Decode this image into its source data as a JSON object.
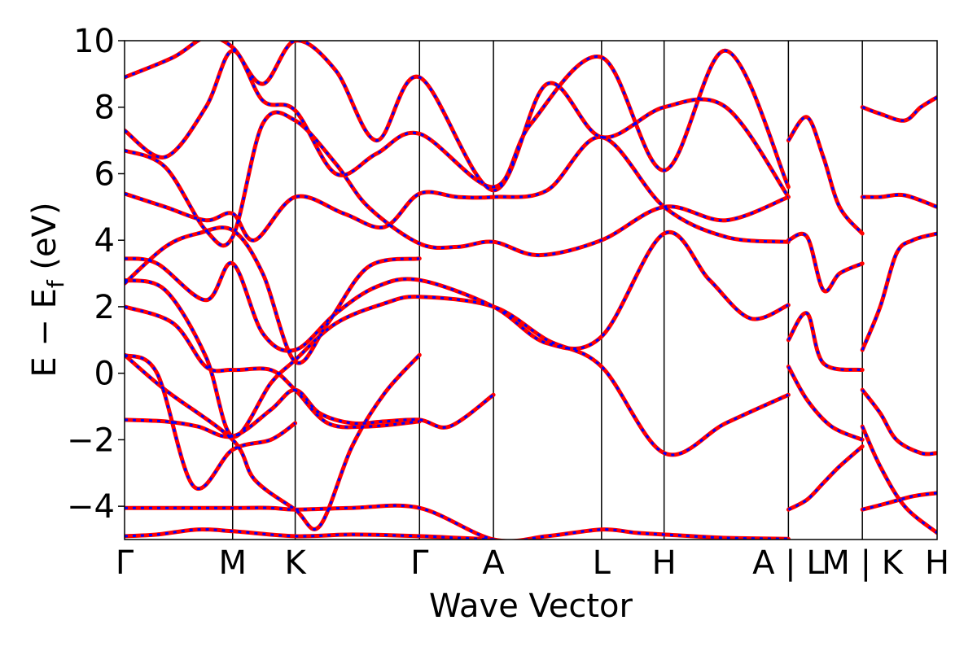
{
  "chart_data": {
    "type": "line",
    "xlabel": "Wave Vector",
    "ylabel_main": "E − E",
    "ylabel_sub": "f",
    "ylabel_unit": " (eV)",
    "ylim": [
      -5,
      10
    ],
    "yticks": [
      -4,
      -2,
      0,
      2,
      4,
      6,
      8,
      10
    ],
    "ytick_labels": [
      "−4",
      "−2",
      "0",
      "2",
      "4",
      "6",
      "8",
      "10"
    ],
    "xlim": [
      0,
      10
    ],
    "high_symmetry_points": [
      {
        "label": "Γ",
        "k": 0.0
      },
      {
        "label": "M",
        "k": 1.33
      },
      {
        "label": "K",
        "k": 2.1
      },
      {
        "label": "Γ",
        "k": 3.63
      },
      {
        "label": "A",
        "k": 4.54
      },
      {
        "label": "L",
        "k": 5.87
      },
      {
        "label": "H",
        "k": 6.64
      },
      {
        "label": "A | L",
        "k": 8.17
      },
      {
        "label": "M | K",
        "k": 9.08
      },
      {
        "label": "H",
        "k": 10.0
      }
    ],
    "series_styles": [
      {
        "color": "#ff0000",
        "dash": "solid"
      },
      {
        "color": "#0000ff",
        "dash": "dashed"
      }
    ],
    "bands": [
      {
        "k": [
          0,
          0.6,
          1.33,
          1.8,
          2.1,
          2.8,
          3.63,
          4.54,
          5.2,
          5.87,
          6.3,
          6.64,
          7.4,
          8.17
        ],
        "e": [
          -4.05,
          -4.05,
          -4.05,
          -4.05,
          -4.1,
          -4.05,
          -4.05,
          -5.0,
          -4.9,
          -4.7,
          -4.8,
          -4.85,
          -4.95,
          -4.98
        ]
      },
      {
        "k": [
          0,
          0.4,
          0.9,
          1.33,
          2.1,
          2.8,
          3.63,
          4.1,
          4.54
        ],
        "e": [
          -4.9,
          -4.85,
          -4.7,
          -4.75,
          -4.9,
          -4.85,
          -4.9,
          -4.95,
          -5.0
        ]
      },
      {
        "k": [
          0,
          0.5,
          0.9,
          1.33,
          1.8,
          2.1,
          2.4,
          2.8,
          3.2,
          3.63,
          4.0,
          4.54
        ],
        "e": [
          -1.4,
          -1.45,
          -1.6,
          -1.9,
          -1.1,
          -0.5,
          -1.2,
          -1.5,
          -1.45,
          -1.4,
          -1.6,
          -0.65
        ]
      },
      {
        "k": [
          0,
          0.4,
          0.85,
          1.33,
          1.8,
          2.1
        ],
        "e": [
          0.55,
          0.0,
          -3.4,
          -2.3,
          -2.0,
          -1.5
        ]
      },
      {
        "k": [
          0,
          0.5,
          1.33,
          1.6,
          2.1,
          2.4,
          2.8,
          3.2,
          3.63
        ],
        "e": [
          0.55,
          -0.5,
          -2.0,
          -3.2,
          -4.1,
          -4.6,
          -2.2,
          -0.6,
          0.55
        ]
      },
      {
        "k": [
          0,
          0.6,
          1.0,
          1.33,
          1.8,
          2.1,
          2.5,
          3.0,
          3.63
        ],
        "e": [
          2.0,
          1.5,
          0.2,
          0.1,
          0.1,
          -0.5,
          -1.5,
          -1.6,
          -1.45
        ]
      },
      {
        "k": [
          0,
          0.5,
          1.0,
          1.33,
          1.8,
          2.1,
          2.6,
          3.2,
          3.63,
          4.54,
          5.2,
          5.87,
          6.64,
          7.4,
          8.17
        ],
        "e": [
          2.8,
          2.5,
          0.5,
          -1.9,
          -0.3,
          0.4,
          1.5,
          2.1,
          2.3,
          2.0,
          1.0,
          0.2,
          -2.4,
          -1.5,
          -0.65
        ]
      },
      {
        "k": [
          0,
          0.4,
          1.0,
          1.33,
          1.7,
          2.1,
          2.6,
          3.1,
          3.63,
          4.54,
          5.2,
          5.87,
          6.64,
          7.2,
          7.7,
          8.17
        ],
        "e": [
          3.45,
          3.3,
          2.2,
          3.3,
          1.2,
          0.7,
          1.8,
          2.6,
          2.8,
          2.0,
          0.9,
          1.1,
          4.2,
          2.8,
          1.65,
          2.05
        ]
      },
      {
        "k": [
          0,
          0.5,
          0.9,
          1.33,
          1.7,
          2.1,
          2.5,
          3.0,
          3.63
        ],
        "e": [
          2.7,
          3.8,
          4.2,
          4.3,
          3.0,
          0.35,
          1.5,
          3.2,
          3.45
        ]
      },
      {
        "k": [
          0,
          0.5,
          1.0,
          1.33,
          1.6,
          2.1,
          2.7,
          3.2,
          3.63,
          4.1,
          4.54,
          5.2,
          5.87,
          6.64,
          7.4,
          8.17
        ],
        "e": [
          5.4,
          5.0,
          4.6,
          4.8,
          4.0,
          5.3,
          4.8,
          4.4,
          5.4,
          5.3,
          5.3,
          5.5,
          7.1,
          5.0,
          4.1,
          3.95
        ]
      },
      {
        "k": [
          0,
          0.5,
          1.0,
          1.33,
          1.7,
          2.1,
          2.6,
          3.0,
          3.63,
          4.1,
          4.54,
          5.1,
          5.87,
          6.64,
          7.4,
          8.17
        ],
        "e": [
          6.7,
          6.2,
          4.3,
          4.1,
          7.5,
          7.6,
          6.3,
          5.0,
          3.9,
          3.8,
          3.95,
          3.55,
          4.0,
          5.0,
          4.6,
          5.3
        ]
      },
      {
        "k": [
          0,
          0.5,
          1.0,
          1.33,
          1.7,
          2.1,
          2.6,
          3.1,
          3.63,
          4.54,
          5.0,
          5.87,
          6.64,
          7.4,
          8.17
        ],
        "e": [
          7.3,
          6.5,
          8.0,
          9.7,
          8.2,
          7.9,
          6.0,
          6.6,
          7.2,
          5.6,
          7.5,
          9.5,
          6.1,
          9.7,
          5.6
        ]
      },
      {
        "k": [
          0,
          0.6,
          1.0,
          1.33,
          1.7,
          2.1,
          2.6,
          3.1,
          3.63,
          4.54,
          5.2,
          5.87,
          6.64,
          7.4,
          8.17
        ],
        "e": [
          8.9,
          9.5,
          10.1,
          9.8,
          8.7,
          10.0,
          9.1,
          7.0,
          8.9,
          5.5,
          8.7,
          7.1,
          8.0,
          8.0,
          5.3
        ]
      },
      {
        "k": [
          8.17,
          8.4,
          8.6,
          8.8,
          9.08
        ],
        "e": [
          7.0,
          7.7,
          6.5,
          5.0,
          4.2
        ]
      },
      {
        "k": [
          8.17,
          8.4,
          8.6,
          8.8,
          9.08
        ],
        "e": [
          4.0,
          4.1,
          2.5,
          3.0,
          3.3
        ]
      },
      {
        "k": [
          8.17,
          8.4,
          8.6,
          9.08
        ],
        "e": [
          1.0,
          1.8,
          0.3,
          0.1
        ]
      },
      {
        "k": [
          8.17,
          8.4,
          8.7,
          9.08
        ],
        "e": [
          0.2,
          -0.8,
          -1.6,
          -2.0
        ]
      },
      {
        "k": [
          8.17,
          8.4,
          8.6,
          8.8,
          9.08
        ],
        "e": [
          -4.1,
          -3.8,
          -3.3,
          -2.8,
          -2.2
        ]
      },
      {
        "k": [
          9.08,
          9.3,
          9.5,
          9.7,
          10.0
        ],
        "e": [
          0.7,
          2.0,
          3.6,
          4.0,
          4.2
        ]
      },
      {
        "k": [
          9.08,
          9.3,
          9.6,
          10.0
        ],
        "e": [
          5.3,
          5.3,
          5.35,
          5.0
        ]
      },
      {
        "k": [
          9.08,
          9.3,
          9.6,
          9.8,
          10.0
        ],
        "e": [
          8.0,
          7.8,
          7.6,
          8.0,
          8.3
        ]
      },
      {
        "k": [
          9.08,
          9.3,
          9.5,
          9.8,
          10.0
        ],
        "e": [
          -0.5,
          -1.2,
          -2.0,
          -2.4,
          -2.4
        ]
      },
      {
        "k": [
          9.08,
          9.3,
          9.6,
          10.0
        ],
        "e": [
          -1.6,
          -2.8,
          -4.0,
          -4.8
        ]
      },
      {
        "k": [
          9.08,
          9.4,
          9.7,
          10.0
        ],
        "e": [
          -4.1,
          -3.9,
          -3.7,
          -3.6
        ]
      }
    ]
  }
}
